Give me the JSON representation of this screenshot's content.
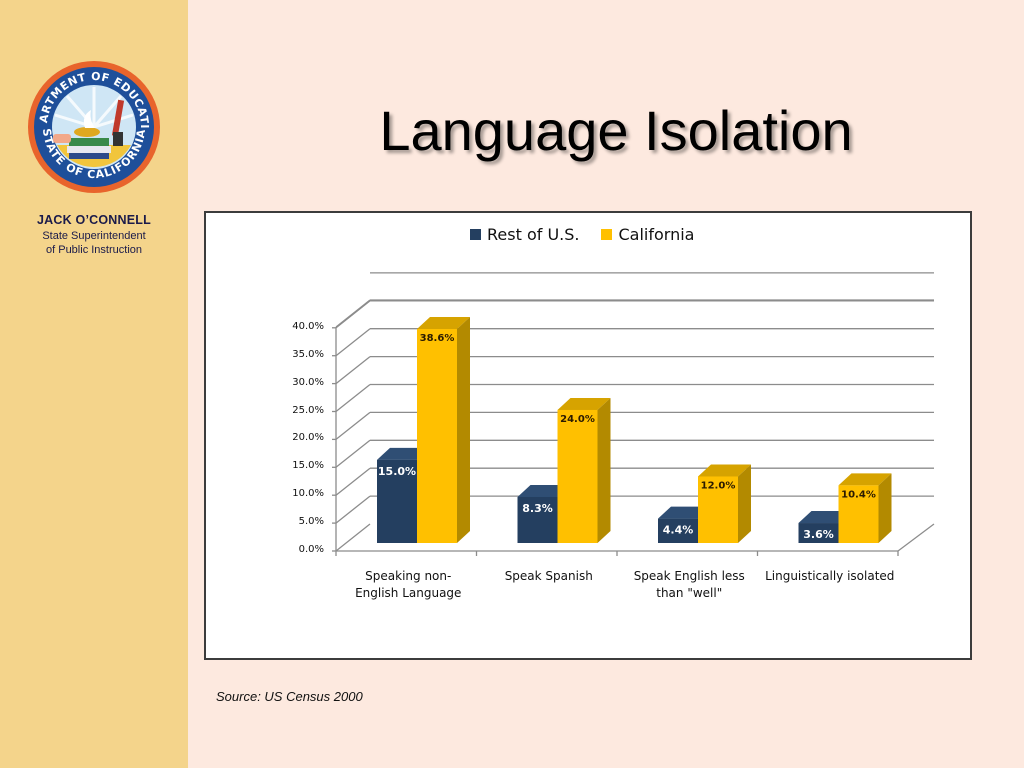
{
  "sidebar": {
    "seal": {
      "top_text": "DEPARTMENT OF EDUCATION",
      "bottom_text": "STATE OF CALIFORNIA"
    },
    "presenter_name": "JACK O’CONNELL",
    "presenter_title_line1": "State Superintendent",
    "presenter_title_line2": "of Public Instruction"
  },
  "slide": {
    "title": "Language Isolation",
    "source": "Source: US Census 2000"
  },
  "colors": {
    "rest_of_us": "#243f60",
    "california": "#ffc000",
    "california_side": "#b38a00",
    "sidebar_bg": "#f4d48b",
    "slide_bg": "#fde9df"
  },
  "chart_data": {
    "type": "bar",
    "title": "",
    "xlabel": "",
    "ylabel": "",
    "ylim": [
      0,
      40
    ],
    "y_ticks": [
      "0.0%",
      "5.0%",
      "10.0%",
      "15.0%",
      "20.0%",
      "25.0%",
      "30.0%",
      "35.0%",
      "40.0%"
    ],
    "grid": true,
    "legend_position": "top",
    "style": "3d-clustered-column",
    "categories": [
      "Speaking non-English Language",
      "Speak Spanish",
      "Speak English less than \"well\"",
      "Linguistically isolated"
    ],
    "category_lines": [
      [
        "Speaking non-",
        "English Language"
      ],
      [
        "Speak Spanish",
        ""
      ],
      [
        "Speak English less",
        "than \"well\""
      ],
      [
        "Linguistically isolated",
        ""
      ]
    ],
    "series": [
      {
        "name": "Rest of U.S.",
        "values": [
          15.0,
          8.3,
          4.4,
          3.6
        ],
        "labels": [
          "15.0%",
          "8.3%",
          "4.4%",
          "3.6%"
        ]
      },
      {
        "name": "California",
        "values": [
          38.6,
          24.0,
          12.0,
          10.4
        ],
        "labels": [
          "38.6%",
          "24.0%",
          "12.0%",
          "10.4%"
        ]
      }
    ]
  }
}
